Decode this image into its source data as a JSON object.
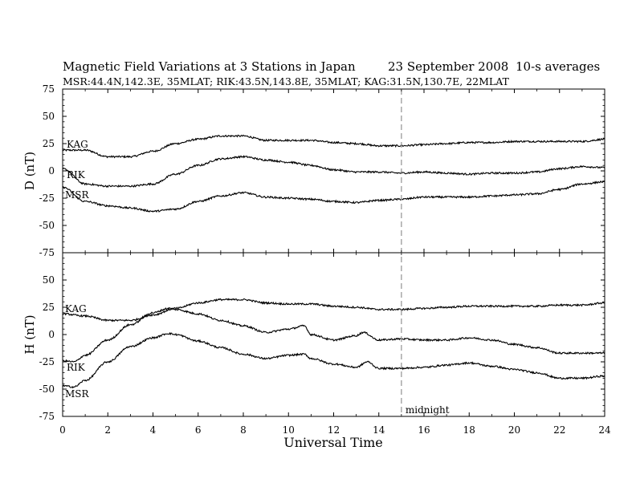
{
  "header": {
    "title": "Magnetic Field Variations at 3 Stations in Japan",
    "date": "23 September 2008",
    "averaging": "10-s averages",
    "stations": "MSR:44.4N,142.3E, 35MLAT;   RIK:43.5N,143.8E, 35MLAT;   KAG:31.5N,130.7E, 22MLAT"
  },
  "chart_data": [
    {
      "type": "line",
      "panel": "top",
      "ylabel": "D (nT)",
      "ylim": [
        -75,
        75
      ],
      "yticks": [
        75,
        50,
        25,
        0,
        -25,
        -50,
        -75
      ],
      "xlim": [
        0,
        24
      ],
      "grid": false,
      "series": [
        {
          "name": "KAG",
          "x": [
            0,
            1,
            2,
            3,
            4,
            5,
            6,
            7,
            8,
            9,
            10,
            11,
            12,
            13,
            14,
            15,
            16,
            17,
            18,
            19,
            20,
            21,
            22,
            23,
            24
          ],
          "y": [
            19,
            19,
            13,
            13,
            18,
            25,
            29,
            32,
            32,
            28,
            28,
            28,
            26,
            25,
            23,
            23,
            24,
            25,
            26,
            26,
            27,
            27,
            27,
            27,
            29
          ]
        },
        {
          "name": "RIK",
          "x": [
            0,
            1,
            2,
            3,
            4,
            5,
            6,
            7,
            8,
            9,
            10,
            11,
            12,
            13,
            14,
            15,
            16,
            17,
            18,
            19,
            20,
            21,
            22,
            23,
            24
          ],
          "y": [
            2,
            -12,
            -14,
            -14,
            -12,
            -3,
            5,
            11,
            13,
            10,
            8,
            5,
            1,
            -1,
            -1,
            -2,
            -1,
            -2,
            -3,
            -2,
            -2,
            -1,
            2,
            4,
            3
          ]
        },
        {
          "name": "MSR",
          "x": [
            0,
            1,
            2,
            3,
            4,
            5,
            6,
            7,
            8,
            9,
            10,
            11,
            12,
            13,
            14,
            15,
            16,
            17,
            18,
            19,
            20,
            21,
            22,
            23,
            24
          ],
          "y": [
            -15,
            -28,
            -32,
            -34,
            -37,
            -35,
            -28,
            -23,
            -20,
            -24,
            -25,
            -26,
            -28,
            -29,
            -27,
            -26,
            -24,
            -24,
            -24,
            -23,
            -22,
            -21,
            -17,
            -12,
            -10
          ]
        }
      ],
      "annotations": []
    },
    {
      "type": "line",
      "panel": "bottom",
      "ylabel": "H (nT)",
      "xlabel": "Universal Time",
      "ylim": [
        -75,
        75
      ],
      "yticks": [
        75,
        50,
        25,
        0,
        -25,
        -50,
        -75
      ],
      "xlim": [
        0,
        24
      ],
      "xticks": [
        0,
        2,
        4,
        6,
        8,
        10,
        12,
        14,
        16,
        18,
        20,
        22,
        24
      ],
      "grid": false,
      "series": [
        {
          "name": "KAG",
          "x": [
            0,
            1,
            2,
            3,
            4,
            5,
            6,
            7,
            8,
            9,
            10,
            11,
            12,
            13,
            14,
            15,
            16,
            17,
            18,
            19,
            20,
            21,
            22,
            23,
            24
          ],
          "y": [
            19,
            17,
            13,
            13,
            18,
            24,
            29,
            32,
            32,
            29,
            28,
            28,
            26,
            25,
            23,
            23,
            24,
            25,
            26,
            26,
            26,
            26,
            27,
            27,
            29
          ]
        },
        {
          "name": "RIK",
          "x": [
            0,
            0.5,
            1,
            2,
            3,
            4,
            4.7,
            5,
            6,
            7,
            8,
            9,
            10,
            10.7,
            11,
            12,
            13,
            13.3,
            14,
            15,
            16,
            17,
            18,
            19,
            20,
            21,
            22,
            23,
            24
          ],
          "y": [
            -24,
            -25,
            -19,
            -5,
            9,
            20,
            24,
            23,
            19,
            13,
            8,
            2,
            5,
            8,
            0,
            -5,
            -1,
            2,
            -5,
            -4,
            -5,
            -5,
            -3,
            -5,
            -9,
            -12,
            -17,
            -17,
            -17
          ]
        },
        {
          "name": "MSR",
          "x": [
            0,
            0.5,
            1,
            2,
            3,
            4,
            4.7,
            5,
            6,
            7,
            8,
            9,
            10,
            10.7,
            11,
            12,
            13,
            13.5,
            14,
            15,
            16,
            17,
            18,
            19,
            20,
            21,
            22,
            23,
            24
          ],
          "y": [
            -47,
            -48,
            -42,
            -25,
            -11,
            -3,
            1,
            0,
            -6,
            -12,
            -18,
            -22,
            -19,
            -18,
            -22,
            -27,
            -30,
            -25,
            -31,
            -31,
            -30,
            -28,
            -26,
            -29,
            -32,
            -35,
            -40,
            -40,
            -38
          ]
        }
      ],
      "annotations": [
        {
          "text": "midnight",
          "x": 15
        }
      ]
    }
  ]
}
